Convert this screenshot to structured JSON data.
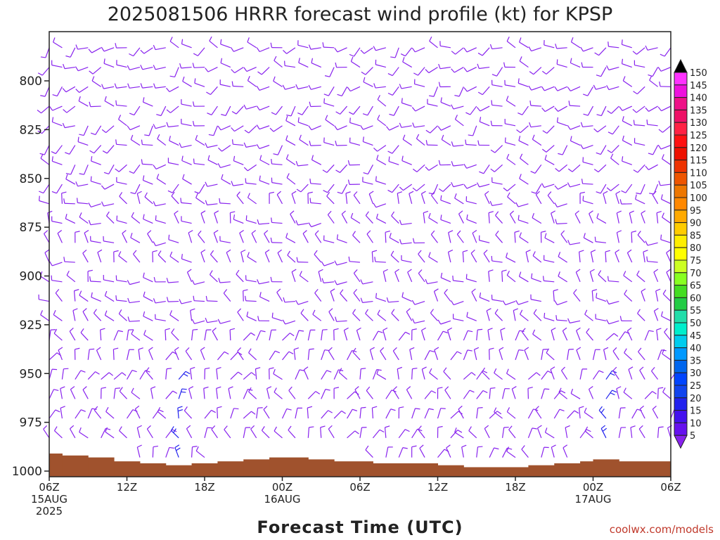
{
  "chart_data": {
    "type": "wind_barb_time_height",
    "title": "2025081506 HRRR forecast wind profile (kt) for KPSP",
    "xlabel": "Forecast Time (UTC)",
    "ylabel": "",
    "credit": "coolwx.com/models",
    "y_ticks": [
      "800",
      "825",
      "850",
      "875",
      "900",
      "925",
      "950",
      "975",
      "1000"
    ],
    "y_range": [
      777,
      1000
    ],
    "x_ticks": [
      {
        "hour": 0,
        "lines": [
          "06Z",
          "15AUG",
          "2025"
        ]
      },
      {
        "hour": 6,
        "lines": [
          "12Z"
        ]
      },
      {
        "hour": 12,
        "lines": [
          "18Z"
        ]
      },
      {
        "hour": 18,
        "lines": [
          "00Z",
          "16AUG"
        ]
      },
      {
        "hour": 24,
        "lines": [
          "06Z"
        ]
      },
      {
        "hour": 30,
        "lines": [
          "12Z"
        ]
      },
      {
        "hour": 36,
        "lines": [
          "18Z"
        ]
      },
      {
        "hour": 42,
        "lines": [
          "00Z",
          "17AUG"
        ]
      },
      {
        "hour": 48,
        "lines": [
          "06Z"
        ]
      }
    ],
    "x_range_hours": [
      0,
      48
    ],
    "surface_pressure": [
      {
        "h0": 0,
        "h1": 1,
        "p": 991
      },
      {
        "h0": 1,
        "h1": 3,
        "p": 992
      },
      {
        "h0": 3,
        "h1": 5,
        "p": 993
      },
      {
        "h0": 5,
        "h1": 7,
        "p": 995
      },
      {
        "h0": 7,
        "h1": 9,
        "p": 996
      },
      {
        "h0": 9,
        "h1": 11,
        "p": 997
      },
      {
        "h0": 11,
        "h1": 13,
        "p": 996
      },
      {
        "h0": 13,
        "h1": 15,
        "p": 995
      },
      {
        "h0": 15,
        "h1": 17,
        "p": 994
      },
      {
        "h0": 17,
        "h1": 20,
        "p": 993
      },
      {
        "h0": 20,
        "h1": 22,
        "p": 994
      },
      {
        "h0": 22,
        "h1": 25,
        "p": 995
      },
      {
        "h0": 25,
        "h1": 30,
        "p": 996
      },
      {
        "h0": 30,
        "h1": 32,
        "p": 997
      },
      {
        "h0": 32,
        "h1": 37,
        "p": 998
      },
      {
        "h0": 37,
        "h1": 39,
        "p": 997
      },
      {
        "h0": 39,
        "h1": 41,
        "p": 996
      },
      {
        "h0": 41,
        "h1": 42,
        "p": 995
      },
      {
        "h0": 42,
        "h1": 44,
        "p": 994
      },
      {
        "h0": 44,
        "h1": 48,
        "p": 995
      }
    ],
    "colorbar": {
      "ticks": [
        150,
        145,
        140,
        135,
        130,
        125,
        120,
        115,
        110,
        105,
        100,
        95,
        90,
        85,
        80,
        75,
        70,
        65,
        60,
        55,
        50,
        45,
        40,
        35,
        30,
        25,
        20,
        15,
        10,
        5
      ],
      "colors": [
        "#ff33ff",
        "#ee11dd",
        "#ee1188",
        "#ee1166",
        "#ff2244",
        "#ff1111",
        "#ee1100",
        "#ee3300",
        "#ee5500",
        "#ee7700",
        "#ff8800",
        "#ffaa00",
        "#ffcc00",
        "#ffee00",
        "#ffff00",
        "#ccff22",
        "#88ff22",
        "#44dd22",
        "#22cc44",
        "#22ddaa",
        "#00eecc",
        "#00ccee",
        "#0099ff",
        "#0066ee",
        "#0044ff",
        "#1144ee",
        "#2222ee",
        "#4411ee",
        "#6611ee",
        "#8822ee"
      ]
    },
    "barb_rows_pressure": [
      783,
      793,
      803,
      813,
      823,
      833,
      843,
      853,
      863,
      873,
      883,
      893,
      903,
      913,
      923,
      933,
      943,
      953,
      963,
      973,
      983,
      993
    ],
    "barb_hours_step": 1,
    "barb_color_light": "#8822ee",
    "barb_color_strong": "#2222ee",
    "ground_color": "#a0522d"
  }
}
